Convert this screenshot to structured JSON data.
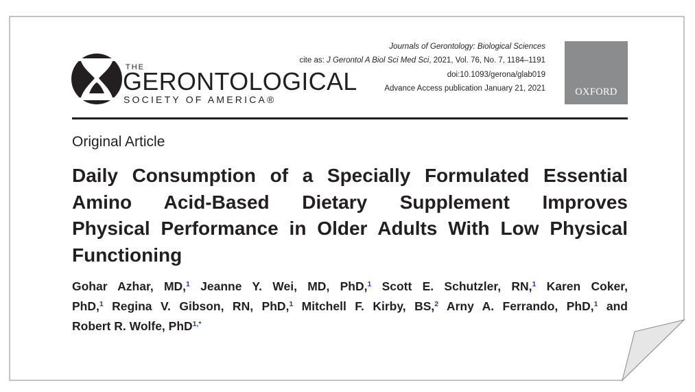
{
  "logo": {
    "the": "THE",
    "main": "GERONTOLOGICAL",
    "sub": "SOCIETY OF AMERICA®"
  },
  "citation": {
    "journal": "Journals of Gerontology: Biological Sciences",
    "cite_prefix": "cite as: ",
    "cite_abbrev": "J Gerontol A Biol Sci Med Sci",
    "cite_details": ", 2021, Vol. 76, No. 7, 1184–1191",
    "doi": "doi:10.1093/gerona/glab019",
    "access": "Advance Access publication January 21, 2021"
  },
  "publisher": {
    "label": "OXFORD"
  },
  "article": {
    "type": "Original Article",
    "title_lines": [
      "Daily Consumption of a Specially Formulated Essential",
      "Amino Acid-Based Dietary Supplement Improves",
      "Physical Performance in Older Adults With Low Physical",
      "Functioning"
    ]
  },
  "authors": [
    {
      "text": "Gohar Azhar, MD,",
      "affil": "1"
    },
    {
      "text": " Jeanne Y. Wei, MD, PhD,",
      "affil": "1"
    },
    {
      "text": " Scott E. Schutzler, RN,",
      "affil": "1"
    },
    {
      "text": " Karen Coker,",
      "affil": ""
    },
    {
      "text": "PhD,",
      "affil": "1"
    },
    {
      "text": " Regina V. Gibson, RN, PhD,",
      "affil": "1"
    },
    {
      "text": " Mitchell F. Kirby, BS,",
      "affil": "2"
    },
    {
      "text": " Arny A. Ferrando, PhD,",
      "affil": "1"
    },
    {
      "text": " and",
      "affil": ""
    },
    {
      "text": "Robert R. Wolfe, PhD",
      "affil": "1,*"
    }
  ],
  "colors": {
    "text": "#231f20",
    "affiliation_marker": "#2b3a9a",
    "oxford_box": "#8b8c8e",
    "page_background": "#ffffff"
  }
}
